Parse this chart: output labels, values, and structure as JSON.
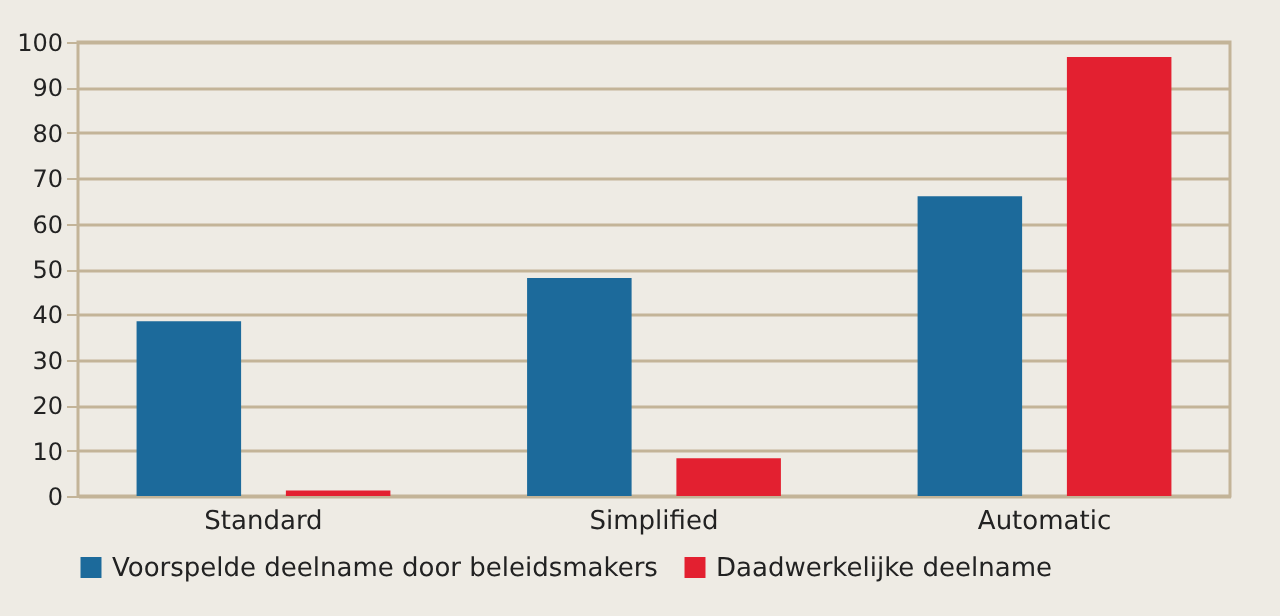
{
  "chart_data": {
    "type": "bar",
    "categories": [
      "Standard",
      "Simplified",
      "Automatic"
    ],
    "series": [
      {
        "name": "Voorspelde deelname door beleidsmakers",
        "color": "#1c6a9b",
        "values": [
          38.5,
          48,
          66
        ]
      },
      {
        "name": "Daadwerkelijke deelname",
        "color": "#e32030",
        "values": [
          1.2,
          8.3,
          96.7
        ]
      }
    ],
    "ylim": [
      0,
      100
    ],
    "yticks": [
      0,
      10,
      20,
      30,
      40,
      50,
      60,
      70,
      80,
      90,
      100
    ],
    "grid": "y",
    "legend": "bottom"
  }
}
